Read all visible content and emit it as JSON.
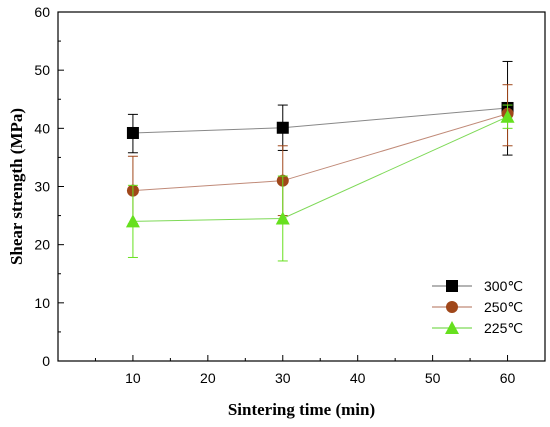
{
  "chart_data": {
    "type": "line",
    "xlabel": "Sintering time (min)",
    "ylabel": "Shear strength (MPa)",
    "xlim": [
      0,
      65
    ],
    "ylim": [
      0,
      60
    ],
    "xticks": [
      10,
      20,
      30,
      40,
      50,
      60
    ],
    "yticks": [
      0,
      10,
      20,
      30,
      40,
      50,
      60
    ],
    "grid": false,
    "legend_position": "bottom-right",
    "x": [
      10,
      30,
      60
    ],
    "series": [
      {
        "name": "300℃",
        "marker": "square",
        "color": "#000000",
        "line_color": "#888888",
        "values": [
          39.2,
          40.1,
          43.5
        ],
        "err_low": [
          35.8,
          36.2,
          35.4
        ],
        "err_high": [
          42.4,
          44.0,
          51.5
        ]
      },
      {
        "name": "250℃",
        "marker": "circle",
        "color": "#a0471a",
        "line_color": "#c08a78",
        "values": [
          29.3,
          31.0,
          42.5
        ],
        "err_low": [
          23.6,
          25.0,
          37.0
        ],
        "err_high": [
          35.2,
          37.0,
          47.5
        ]
      },
      {
        "name": "225℃",
        "marker": "triangle",
        "color": "#66e01e",
        "line_color": "#7ed957",
        "values": [
          24.0,
          24.5,
          42.0
        ],
        "err_low": [
          17.8,
          17.2,
          40.0
        ],
        "err_high": [
          30.2,
          31.8,
          44.0
        ]
      }
    ]
  }
}
